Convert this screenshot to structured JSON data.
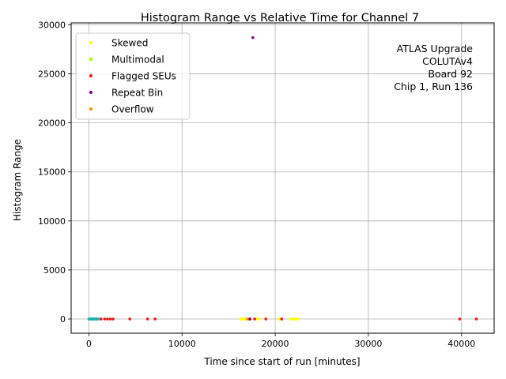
{
  "chart_data": {
    "type": "scatter",
    "title": "Histogram Range vs Relative Time for Channel 7",
    "xlabel": "Time since start of run [minutes]",
    "ylabel": "Histogram Range",
    "xlim": [
      -1900,
      43500
    ],
    "ylim": [
      -1450,
      30200
    ],
    "xticks": [
      0,
      10000,
      20000,
      30000,
      40000
    ],
    "yticks": [
      0,
      5000,
      10000,
      15000,
      20000,
      25000,
      30000
    ],
    "grid": true,
    "legend_position": "top-left",
    "annotation": [
      "ATLAS Upgrade",
      "COLUTAv4",
      "Board 92",
      "Chip 1, Run 136"
    ],
    "series": [
      {
        "name": "Skewed",
        "color": "#ffff00",
        "x": [
          16300,
          16500,
          16700,
          16900,
          17100,
          18100,
          18300,
          20400,
          20600,
          21700,
          21900,
          22100,
          22300,
          22500
        ],
        "y": [
          0,
          0,
          0,
          0,
          0,
          0,
          0,
          0,
          0,
          0,
          0,
          0,
          0,
          0
        ]
      },
      {
        "name": "Multimodal",
        "color": "#a0ff00",
        "x": [
          17300,
          20700
        ],
        "y": [
          0,
          0
        ]
      },
      {
        "name": "Flagged SEUs",
        "color": "#e41a1c",
        "x": [
          1300,
          1700,
          2000,
          2300,
          2600,
          4400,
          6300,
          7100,
          17300,
          17800,
          19000,
          20700,
          39800,
          41600
        ],
        "y": [
          0,
          0,
          0,
          0,
          0,
          0,
          0,
          0,
          0,
          0,
          0,
          0,
          0,
          0
        ]
      },
      {
        "name": "Repeat Bin",
        "color": "#800080",
        "x": [
          17600,
          17250
        ],
        "y": [
          28700,
          0
        ]
      },
      {
        "name": "Overflow",
        "color": "#ff8c00",
        "x": [
          17000
        ],
        "y": [
          0
        ]
      },
      {
        "name": "",
        "color": "#20b2aa",
        "x": [
          0,
          60,
          120,
          180,
          240,
          300,
          360,
          420,
          480,
          540,
          600,
          660,
          720,
          780,
          840,
          900,
          960,
          1020
        ],
        "y": [
          0,
          0,
          0,
          0,
          0,
          0,
          0,
          0,
          0,
          0,
          0,
          0,
          0,
          0,
          0,
          0,
          0,
          0
        ]
      }
    ]
  }
}
